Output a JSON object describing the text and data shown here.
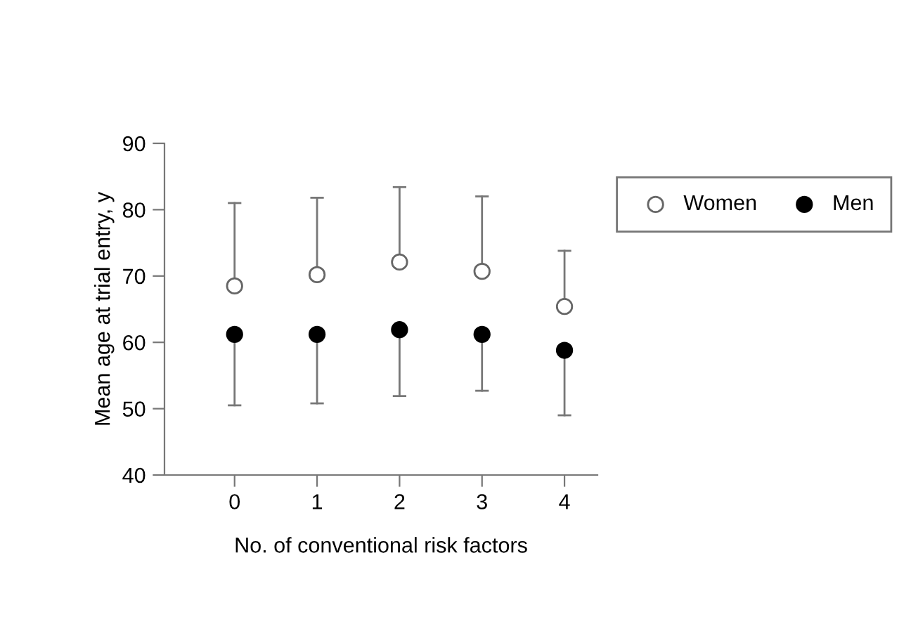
{
  "chart_data": {
    "type": "scatter",
    "xlabel": "No. of conventional risk factors",
    "ylabel": "Mean age at trial entry, y",
    "categories": [
      "0",
      "1",
      "2",
      "3",
      "4"
    ],
    "ylim": [
      40,
      90
    ],
    "yticks": [
      40,
      50,
      60,
      70,
      80,
      90
    ],
    "grid": false,
    "legend": "top right",
    "marker": "circle",
    "series": [
      {
        "name": "Women",
        "color": "#666666",
        "values": [
          68.5,
          70.2,
          72.1,
          70.7,
          65.4
        ],
        "errors": [
          [
            68.5,
            81.0
          ],
          [
            70.2,
            81.8
          ],
          [
            72.1,
            83.4
          ],
          [
            70.7,
            82.0
          ],
          [
            65.4,
            73.8
          ]
        ]
      },
      {
        "name": "Men",
        "color": "#000000",
        "values": [
          61.2,
          61.2,
          61.9,
          61.2,
          58.8
        ],
        "errors": [
          [
            50.5,
            61.2
          ],
          [
            50.8,
            61.2
          ],
          [
            51.9,
            61.9
          ],
          [
            52.7,
            61.2
          ],
          [
            49.0,
            58.8
          ]
        ]
      }
    ]
  }
}
